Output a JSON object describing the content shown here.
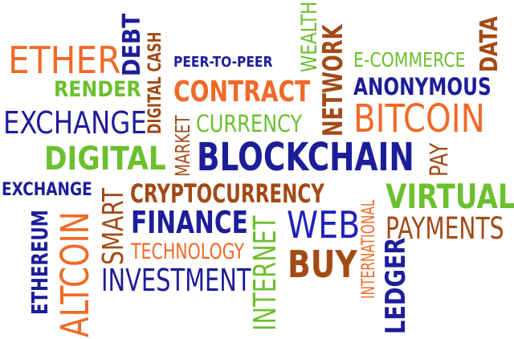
{
  "colors": {
    "orange": "#f06a27",
    "navy": "#1d1d9a",
    "green": "#6cbf2e",
    "brown": "#a24a16",
    "blue": "#2222b8"
  },
  "words": [
    {
      "id": "ether",
      "text": "ETHER",
      "color": "orange"
    },
    {
      "id": "debt",
      "text": "DEBT",
      "color": "navy"
    },
    {
      "id": "digital-cash",
      "text": "DIGITAL CASH",
      "color": "brown"
    },
    {
      "id": "peer-to-peer",
      "text": "PEER-TO-PEER",
      "color": "navy"
    },
    {
      "id": "wealth",
      "text": "WEALTH",
      "color": "green"
    },
    {
      "id": "network",
      "text": "NETWORK",
      "color": "brown"
    },
    {
      "id": "e-commerce",
      "text": "E-COMMERCE",
      "color": "green"
    },
    {
      "id": "data",
      "text": "DATA",
      "color": "brown"
    },
    {
      "id": "render",
      "text": "RENDER",
      "color": "green"
    },
    {
      "id": "contract",
      "text": "CONTRACT",
      "color": "orange"
    },
    {
      "id": "anonymous",
      "text": "ANONYMOUS",
      "color": "navy"
    },
    {
      "id": "bitcoin",
      "text": "BITCOIN",
      "color": "orange"
    },
    {
      "id": "exchange-1",
      "text": "EXCHANGE",
      "color": "navy"
    },
    {
      "id": "digital-2",
      "text": "DIGITAL",
      "color": "brown"
    },
    {
      "id": "market",
      "text": "MARKET",
      "color": "brown"
    },
    {
      "id": "currency",
      "text": "CURRENCY",
      "color": "green"
    },
    {
      "id": "digital",
      "text": "DIGITAL",
      "color": "green"
    },
    {
      "id": "blockchain",
      "text": "BLOCKCHAIN",
      "color": "navy"
    },
    {
      "id": "pay",
      "text": "PAY",
      "color": "brown"
    },
    {
      "id": "exchange-2",
      "text": "EXCHANGE",
      "color": "navy"
    },
    {
      "id": "smart",
      "text": "SMART",
      "color": "brown"
    },
    {
      "id": "cryptocurrency",
      "text": "CRYPTOCURRENCY",
      "color": "brown"
    },
    {
      "id": "international",
      "text": "INTERNATIONAL",
      "color": "orange"
    },
    {
      "id": "virtual",
      "text": "VIRTUAL",
      "color": "green"
    },
    {
      "id": "ethereum",
      "text": "ETHEREUM",
      "color": "navy"
    },
    {
      "id": "altcoin",
      "text": "ALTCOIN",
      "color": "orange"
    },
    {
      "id": "finance",
      "text": "FINANCE",
      "color": "navy"
    },
    {
      "id": "internet",
      "text": "INTERNET",
      "color": "green"
    },
    {
      "id": "web",
      "text": "WEB",
      "color": "blue"
    },
    {
      "id": "payments",
      "text": "PAYMENTS",
      "color": "brown"
    },
    {
      "id": "technology",
      "text": "TECHNOLOGY",
      "color": "orange"
    },
    {
      "id": "buy",
      "text": "BUY",
      "color": "brown"
    },
    {
      "id": "ledger",
      "text": "LEDGER",
      "color": "navy"
    },
    {
      "id": "investment",
      "text": "INVESTMENT",
      "color": "navy"
    }
  ]
}
